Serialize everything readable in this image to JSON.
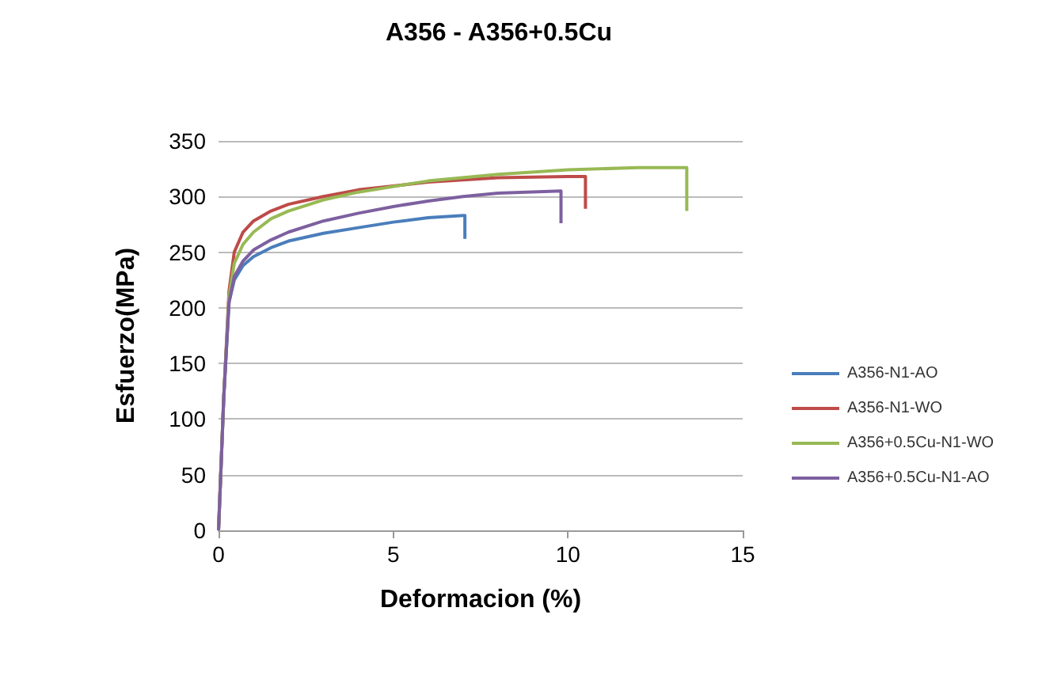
{
  "chart_data": {
    "type": "line",
    "title": "A356 - A356+0.5Cu",
    "xlabel": "Deformacion (%)",
    "ylabel": "Esfuerzo(MPa)",
    "xlim": [
      0,
      15
    ],
    "xticks": [
      0,
      5,
      10,
      15
    ],
    "ylim": [
      0,
      350
    ],
    "yticks": [
      0,
      50,
      100,
      150,
      200,
      250,
      300,
      350
    ],
    "grid": "y",
    "legend": "right",
    "marker": "none",
    "line_style": "solid",
    "series": [
      {
        "name": "A356-N1-AO",
        "color": "#4a7ebb",
        "x": [
          0,
          0.15,
          0.3,
          0.45,
          0.7,
          1,
          1.5,
          2,
          3,
          4,
          5,
          6,
          7,
          7.05,
          7.05
        ],
        "values": [
          0,
          120,
          205,
          225,
          238,
          246,
          254,
          260,
          267,
          272,
          277,
          281,
          283,
          283,
          262
        ]
      },
      {
        "name": "A356-N1-WO",
        "color": "#be4b48",
        "x": [
          0,
          0.15,
          0.3,
          0.45,
          0.7,
          1,
          1.5,
          2,
          3,
          4,
          6,
          8,
          10,
          10.5,
          10.5
        ],
        "values": [
          0,
          120,
          215,
          250,
          268,
          278,
          287,
          293,
          300,
          306,
          313,
          317,
          318,
          318,
          289
        ]
      },
      {
        "name": "A356+0.5Cu-N1-WO",
        "color": "#98b954",
        "x": [
          0,
          0.15,
          0.3,
          0.45,
          0.7,
          1,
          1.5,
          2,
          3,
          4,
          6,
          8,
          10,
          12,
          13.4,
          13.4
        ],
        "values": [
          0,
          120,
          210,
          240,
          257,
          268,
          280,
          287,
          297,
          304,
          314,
          320,
          324,
          326,
          326,
          287
        ]
      },
      {
        "name": "A356+0.5Cu-N1-AO",
        "color": "#7d60a0",
        "x": [
          0,
          0.15,
          0.3,
          0.45,
          0.7,
          1,
          1.5,
          2,
          3,
          4,
          5,
          6,
          7,
          8,
          9.8,
          9.8
        ],
        "values": [
          0,
          120,
          205,
          228,
          242,
          252,
          261,
          268,
          278,
          285,
          291,
          296,
          300,
          303,
          305,
          276
        ]
      }
    ]
  }
}
